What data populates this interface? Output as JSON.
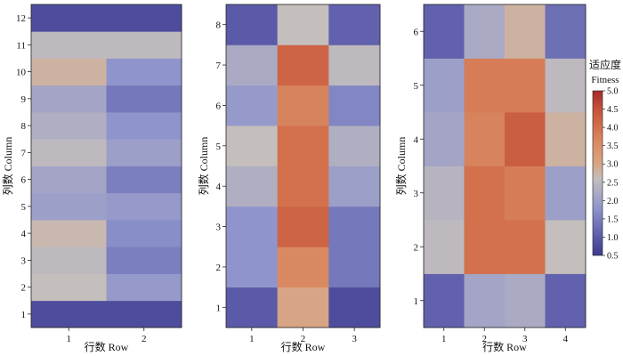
{
  "chart_data": [
    {
      "type": "heatmap",
      "xlabel": "行数 Row",
      "ylabel": "列数 Column",
      "x_categories": [
        "1",
        "2"
      ],
      "y_categories": [
        "1",
        "2",
        "3",
        "4",
        "5",
        "6",
        "7",
        "8",
        "9",
        "10",
        "11",
        "12"
      ],
      "values": [
        [
          0.8,
          0.8
        ],
        [
          2.6,
          1.9
        ],
        [
          2.5,
          1.5
        ],
        [
          2.7,
          1.7
        ],
        [
          2.0,
          1.9
        ],
        [
          2.1,
          1.5
        ],
        [
          2.5,
          2.0
        ],
        [
          2.3,
          1.8
        ],
        [
          2.1,
          1.4
        ],
        [
          2.8,
          1.8
        ],
        [
          2.5,
          2.5
        ],
        [
          0.8,
          0.8
        ]
      ]
    },
    {
      "type": "heatmap",
      "xlabel": "行数 Row",
      "ylabel": "列数 Column",
      "x_categories": [
        "1",
        "2",
        "3"
      ],
      "y_categories": [
        "1",
        "2",
        "3",
        "4",
        "5",
        "6",
        "7",
        "8"
      ],
      "values": [
        [
          1.0,
          3.0,
          0.8
        ],
        [
          1.8,
          3.6,
          1.4
        ],
        [
          1.8,
          4.2,
          1.4
        ],
        [
          2.3,
          4.0,
          2.0
        ],
        [
          2.6,
          4.0,
          2.3
        ],
        [
          1.9,
          3.7,
          1.6
        ],
        [
          2.2,
          4.2,
          2.5
        ],
        [
          1.0,
          2.6,
          1.1
        ]
      ]
    },
    {
      "type": "heatmap",
      "xlabel": "行数 Row",
      "ylabel": "列数 Column",
      "x_categories": [
        "1",
        "2",
        "3",
        "4"
      ],
      "y_categories": [
        "1",
        "2",
        "3",
        "4",
        "5",
        "6"
      ],
      "values": [
        [
          1.1,
          2.1,
          2.2,
          1.1
        ],
        [
          2.5,
          4.0,
          4.0,
          2.6
        ],
        [
          2.4,
          4.0,
          3.8,
          2.0
        ],
        [
          2.1,
          3.7,
          4.3,
          2.8
        ],
        [
          2.0,
          3.8,
          3.8,
          2.5
        ],
        [
          1.1,
          2.2,
          2.8,
          1.3
        ]
      ]
    }
  ],
  "colorbar": {
    "title_cn": "适应度",
    "title_en": "Fitness",
    "min": 0.5,
    "max": 5.0,
    "ticks": [
      "0.5",
      "1.0",
      "1.5",
      "2.0",
      "2.5",
      "3.0",
      "3.5",
      "4.0",
      "4.5",
      "5.0"
    ],
    "colormap": [
      [
        0.5,
        "#3d3a8c"
      ],
      [
        1.0,
        "#5a5aa8"
      ],
      [
        1.8,
        "#8f95cc"
      ],
      [
        2.6,
        "#c4bebc"
      ],
      [
        3.0,
        "#d7a586"
      ],
      [
        3.5,
        "#db8f68"
      ],
      [
        4.0,
        "#d2714c"
      ],
      [
        4.5,
        "#c5513b"
      ],
      [
        5.0,
        "#a52a2a"
      ]
    ]
  }
}
